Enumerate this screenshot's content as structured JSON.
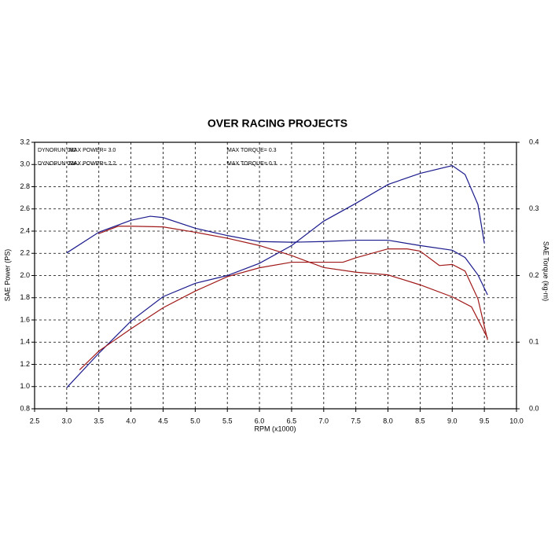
{
  "chart_data": {
    "type": "line",
    "title": "OVER RACING PROJECTS",
    "x_label": "RPM (x1000)",
    "y_label": "SAE Power (PS)",
    "y2_label": "SAE Torque (kg-m)",
    "xlim": [
      2.5,
      10.0
    ],
    "xticks": [
      2.5,
      {
        "value": 3,
        "label": "3.0"
      },
      3.5,
      {
        "value": 4,
        "label": "4.0"
      },
      4.5,
      {
        "value": 5,
        "label": "5.0"
      },
      5.5,
      {
        "value": 6,
        "label": "6.0"
      },
      6.5,
      {
        "value": 7,
        "label": "7.0"
      },
      7.5,
      {
        "value": 8,
        "label": "8.0"
      },
      8.5,
      {
        "value": 9,
        "label": "9.0"
      },
      9.5,
      {
        "value": 10,
        "label": "10.0"
      }
    ],
    "ylim": [
      0.8,
      3.2
    ],
    "yticks": [
      0.8,
      {
        "value": 1,
        "label": "1.0"
      },
      1.2,
      1.4,
      1.6,
      1.8,
      {
        "value": 2,
        "label": "2.0"
      },
      2.2,
      2.4,
      2.6,
      2.8,
      {
        "value": 3,
        "label": "3.0"
      },
      3.2
    ],
    "y2lim": [
      0,
      0.4
    ],
    "y2ticks": [
      {
        "value": 0,
        "label": "0.0"
      },
      0.1,
      0.2,
      0.3,
      0.4
    ],
    "grid": true,
    "legend": [
      {
        "run": "DYNORUN 082",
        "power": "MAX POWER= 3.0",
        "torque": "MAX TORQUE= 0.3",
        "color": "#1a1a8c"
      },
      {
        "run": "DYNORUN 024",
        "power": "MAX POWER= 2.2",
        "torque": "MAX TORQUE= 0.3",
        "color": "#a01818"
      }
    ],
    "series": [
      {
        "color": "#1a1a8c",
        "x": [
          3.0,
          3.5,
          4.0,
          4.5,
          5.0,
          5.5,
          6.0,
          6.5,
          7.0,
          7.5,
          8.0,
          8.5,
          9.0,
          9.2,
          9.4,
          9.5
        ],
        "values": [
          0.99,
          1.3,
          1.59,
          1.81,
          1.93,
          2.0,
          2.11,
          2.27,
          2.49,
          2.65,
          2.82,
          2.92,
          2.99,
          2.91,
          2.64,
          2.29
        ]
      },
      {
        "color": "#1a1a8c",
        "axis": "y2",
        "x": [
          3.0,
          3.5,
          4.0,
          4.3,
          4.5,
          5.0,
          5.5,
          6.0,
          6.5,
          7.0,
          7.5,
          8.0,
          8.5,
          9.0,
          9.2,
          9.4,
          9.55
        ],
        "values": [
          0.234,
          0.265,
          0.283,
          0.289,
          0.287,
          0.271,
          0.26,
          0.251,
          0.25,
          0.251,
          0.253,
          0.253,
          0.245,
          0.238,
          0.227,
          0.201,
          0.171
        ]
      },
      {
        "color": "#a01818",
        "x": [
          3.2,
          3.5,
          4.0,
          4.5,
          5.0,
          5.5,
          6.0,
          6.5,
          7.0,
          7.3,
          7.5,
          8.0,
          8.3,
          8.5,
          8.8,
          9.0,
          9.2,
          9.4,
          9.55
        ],
        "values": [
          1.15,
          1.32,
          1.52,
          1.71,
          1.86,
          1.99,
          2.07,
          2.12,
          2.12,
          2.12,
          2.16,
          2.24,
          2.24,
          2.22,
          2.09,
          2.1,
          2.04,
          1.79,
          1.42
        ]
      },
      {
        "color": "#a01818",
        "axis": "y2",
        "x": [
          3.5,
          3.8,
          4.0,
          4.5,
          5.0,
          5.5,
          6.0,
          6.5,
          7.0,
          7.5,
          8.0,
          8.5,
          9.0,
          9.3,
          9.55
        ],
        "values": [
          0.263,
          0.274,
          0.274,
          0.273,
          0.265,
          0.256,
          0.245,
          0.23,
          0.212,
          0.205,
          0.201,
          0.186,
          0.168,
          0.153,
          0.106
        ]
      }
    ]
  }
}
